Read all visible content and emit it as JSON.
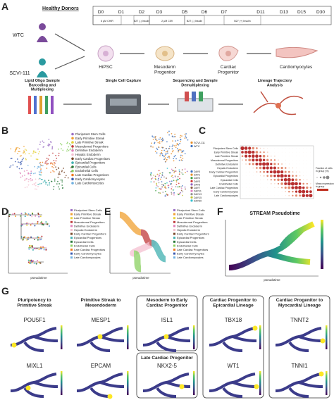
{
  "panel_a": {
    "label": "A",
    "donors_title": "Healthy Donors",
    "days": [
      "D0",
      "D1",
      "D2",
      "D3",
      "D5",
      "D6",
      "D7",
      "D11",
      "D13",
      "D15",
      "D30"
    ],
    "media": [
      "6 μM CHIR",
      "B27 (-) Insulin",
      "2 μM C59",
      "B27 (-) Insulin",
      "B27 (+) Insulin"
    ],
    "donors": [
      "WTC",
      "SCVI-111"
    ],
    "stages": [
      "HiPSC",
      "Mesoderm Progenitor",
      "Cardiac Progenitor",
      "Cardiomyocytes"
    ],
    "workflow": [
      "Lipid Oligo Sample Barcoding and Multiplexing",
      "Single Cell Capture",
      "Sequencing and Sample Demultiplexing",
      "Lineage Trajectory Analysis"
    ]
  },
  "panel_b": {
    "label": "B",
    "cell_types": [
      {
        "name": "Pluripotent Stem Cells",
        "color": "#9b6fc4"
      },
      {
        "name": "Early Primitive Streak",
        "color": "#f0a030"
      },
      {
        "name": "Late Primitive Streak",
        "color": "#e6d23c"
      },
      {
        "name": "Mesodermal Progenitors",
        "color": "#c03a3a"
      },
      {
        "name": "Definitive Endoderm",
        "color": "#e080b8"
      },
      {
        "name": "Hepatic Endoderm",
        "color": "#f4c0d0"
      },
      {
        "name": "Early Cardiac Progenitors",
        "color": "#7a4a2a"
      },
      {
        "name": "Epicardial Progenitors",
        "color": "#40b0b0"
      },
      {
        "name": "Epicardial Cells",
        "color": "#2a7a3a"
      },
      {
        "name": "Endothelial Cells",
        "color": "#8ad060"
      },
      {
        "name": "Late Cardiac Progenitors",
        "color": "#f07a20"
      },
      {
        "name": "Early Cardiomyocytes",
        "color": "#3a5ab0"
      },
      {
        "name": "Late Cardiomyocytes",
        "color": "#70b0e0"
      }
    ],
    "donor_legend": [
      {
        "name": "SCVI-111",
        "color": "#e8902a"
      },
      {
        "name": "WTC",
        "color": "#3a70c0"
      }
    ],
    "day_legend": [
      {
        "name": "DAY0",
        "color": "#3a70c0"
      },
      {
        "name": "DAY1",
        "color": "#e8902a"
      },
      {
        "name": "DAY2",
        "color": "#3aa040"
      },
      {
        "name": "DAY3",
        "color": "#d03030"
      },
      {
        "name": "DAY5",
        "color": "#9060c0"
      },
      {
        "name": "DAY7",
        "color": "#8a5a40"
      },
      {
        "name": "DAY11",
        "color": "#e080c0"
      },
      {
        "name": "DAY13",
        "color": "#909090"
      },
      {
        "name": "DAY15",
        "color": "#c0c030"
      },
      {
        "name": "DAY30",
        "color": "#30c0d0"
      }
    ]
  },
  "panel_c": {
    "label": "C",
    "size_legend_title": "Fraction of cells in group (%)",
    "color_legend_title": "Mean expression in group"
  },
  "panel_d": {
    "label": "D",
    "x_label": "pseudotime"
  },
  "panel_e": {
    "label": "E",
    "x_label": "pseudotime"
  },
  "panel_f": {
    "label": "F",
    "title": "STREAM Pseudotime",
    "x_label": "pseudotime"
  },
  "panel_g": {
    "label": "G",
    "groups": [
      {
        "title": "Pluripotency to Primitive Streak",
        "genes": [
          "POU5F1",
          "MIXL1"
        ]
      },
      {
        "title": "Primitive Streak to Mesendoderm",
        "genes": [
          "MESP1",
          "EPCAM"
        ]
      },
      {
        "title": "Mesoderm to Early Cardiac Progenitor",
        "genes": [
          "ISL1",
          "NKX2-5"
        ],
        "second_title": "Late Cardiac Progenitor"
      },
      {
        "title": "Cardiac Progenitor to Epicardial Lineage",
        "genes": [
          "TBX18",
          "WT1"
        ]
      },
      {
        "title": "Cardiac Progenitor to Myocardial Lineage",
        "genes": [
          "TNNT2",
          "TNNI1"
        ]
      }
    ]
  }
}
